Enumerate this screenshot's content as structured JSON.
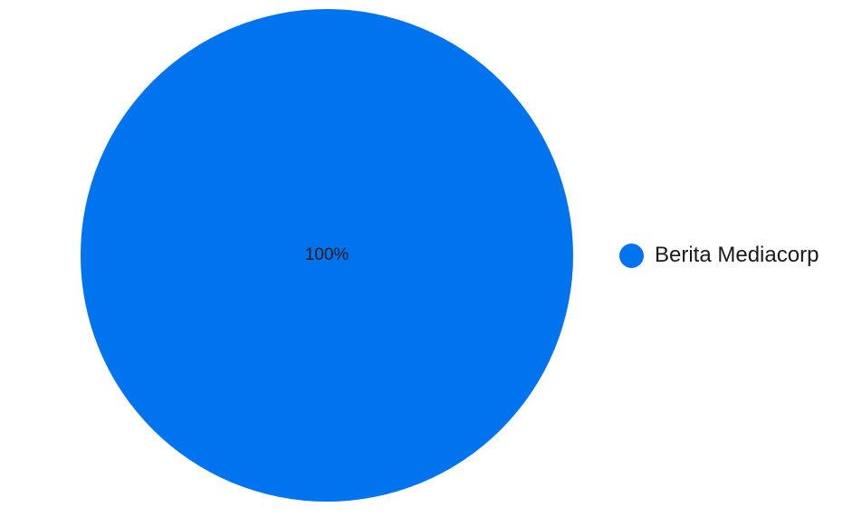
{
  "chart_data": {
    "type": "pie",
    "title": "",
    "slices": [
      {
        "label": "Berita Mediacorp",
        "value": 100,
        "percent_label": "100%",
        "color": "#0073ee"
      }
    ],
    "legend": {
      "placement": "right",
      "entries": [
        "Berita Mediacorp"
      ]
    }
  }
}
